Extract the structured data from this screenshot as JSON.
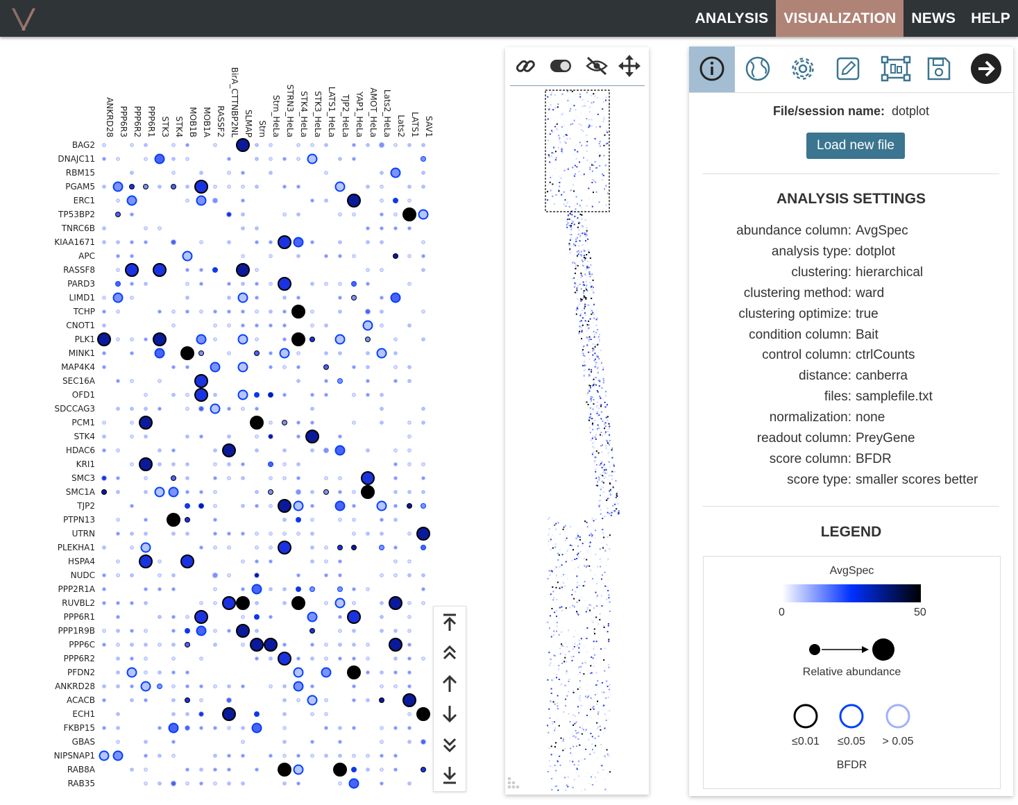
{
  "nav": {
    "items": [
      "ANALYSIS",
      "VISUALIZATION",
      "NEWS",
      "HELP"
    ],
    "active": "VISUALIZATION"
  },
  "colors": {
    "header_bg": "#2f3437",
    "nav_active": "#b08377",
    "accent_button": "#3b7590",
    "tab_active": "#a3bdd3"
  },
  "dotplot": {
    "columns": [
      "ANKRD28",
      "PPP6R3",
      "PPP6R2",
      "PPP6R1",
      "STK3",
      "STK4",
      "MOB1B",
      "MOB1A",
      "RASSF2",
      "BirA_CTTNBP2NL",
      "SLMAP",
      "Strn",
      "Strn_HeLa",
      "STRN3_HeLa",
      "STK4_HeLa",
      "STK3_HeLa",
      "LATS1_HeLa",
      "TJP2_HeLa",
      "YAP1_HeLa",
      "AMOT_HeLa",
      "Lats2_HeLa",
      "Lats2",
      "LATS1",
      "SAV1"
    ],
    "rows": [
      "BAG2",
      "DNAJC11",
      "RBM15",
      "PGAM5",
      "ERC1",
      "TP53BP2",
      "TNRC6B",
      "KIAA1671",
      "APC",
      "RASSF8",
      "PARD3",
      "LIMD1",
      "TCHP",
      "CNOT1",
      "PLK1",
      "MINK1",
      "MAP4K4",
      "SEC16A",
      "OFD1",
      "SDCCAG3",
      "PCM1",
      "STK4",
      "HDAC6",
      "KRI1",
      "SMC3",
      "SMC1A",
      "TJP2",
      "PTPN13",
      "UTRN",
      "PLEKHA1",
      "HSPA4",
      "NUDC",
      "PPP2R1A",
      "RUVBL2",
      "PPP6R1",
      "PPP1R9B",
      "PPP6C",
      "PPP6R2",
      "PFDN2",
      "ANKRD28",
      "ACACB",
      "ECH1",
      "FKBP15",
      "GBAS",
      "NIPSNAP1",
      "RAB8A",
      "RAB35"
    ]
  },
  "scroll_controls": [
    "scroll-top-icon",
    "page-up-double-icon",
    "up-arrow-icon",
    "down-arrow-icon",
    "page-down-double-icon",
    "scroll-bottom-icon"
  ],
  "minimap_tools": [
    "link-icon",
    "toggle-icon",
    "eye-slash-icon",
    "move-arrows-icon"
  ],
  "panel": {
    "tabs": [
      "info-icon",
      "globe-icon",
      "gear-icon",
      "edit-icon",
      "select-box-icon",
      "save-icon",
      "arrow-right-circle-icon"
    ],
    "file_label": "File/session name:",
    "file_name": "dotplot",
    "load_button": "Load new file",
    "settings_title": "ANALYSIS SETTINGS",
    "settings": [
      {
        "key": "abundance column:",
        "value": "AvgSpec"
      },
      {
        "key": "analysis type:",
        "value": "dotplot"
      },
      {
        "key": "clustering:",
        "value": "hierarchical"
      },
      {
        "key": "clustering method:",
        "value": "ward"
      },
      {
        "key": "clustering optimize:",
        "value": "true"
      },
      {
        "key": "condition column:",
        "value": "Bait"
      },
      {
        "key": "control column:",
        "value": "ctrlCounts"
      },
      {
        "key": "distance:",
        "value": "canberra"
      },
      {
        "key": "files:",
        "value": "samplefile.txt"
      },
      {
        "key": "normalization:",
        "value": "none"
      },
      {
        "key": "readout column:",
        "value": "PreyGene"
      },
      {
        "key": "score column:",
        "value": "BFDR"
      },
      {
        "key": "score type:",
        "value": "smaller scores better"
      }
    ],
    "legend_title": "LEGEND",
    "legend": {
      "gradient_title": "AvgSpec",
      "gradient_min": "0",
      "gradient_max": "50",
      "size_label": "Relative abundance",
      "edge_labels": [
        "≤0.01",
        "≤0.05",
        "> 0.05"
      ],
      "edge_colors": [
        "#000000",
        "#0040ff",
        "#9fb0ff"
      ],
      "score_label": "BFDR"
    }
  }
}
